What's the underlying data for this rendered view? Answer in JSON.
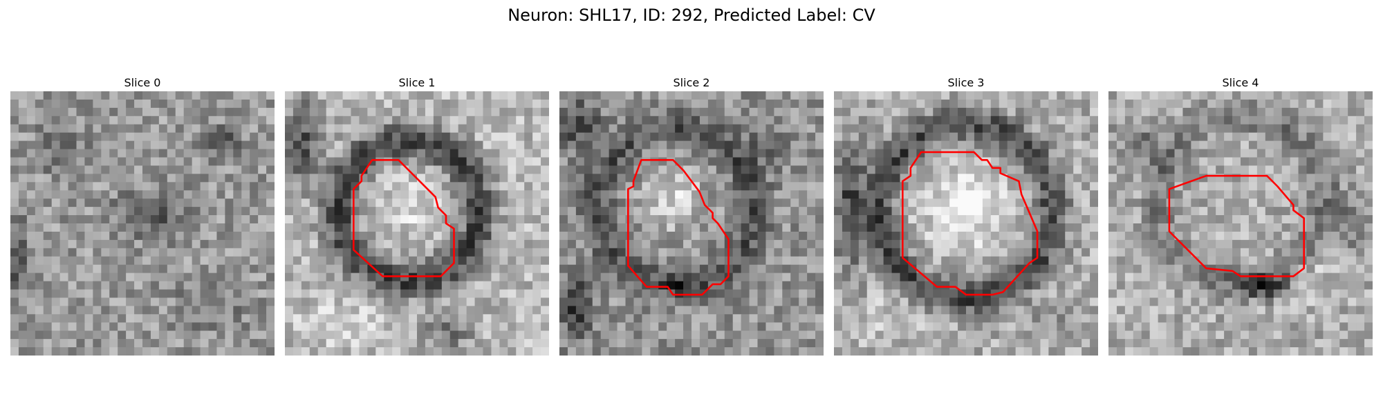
{
  "figure": {
    "title": "Neuron: SHL17, ID: 292, Predicted Label: CV"
  },
  "panels": [
    {
      "title": "Slice 0"
    },
    {
      "title": "Slice 1"
    },
    {
      "title": "Slice 2"
    },
    {
      "title": "Slice 3"
    },
    {
      "title": "Slice 4"
    }
  ],
  "colors": {
    "contour": "#ff0000",
    "background": "#ffffff"
  }
}
